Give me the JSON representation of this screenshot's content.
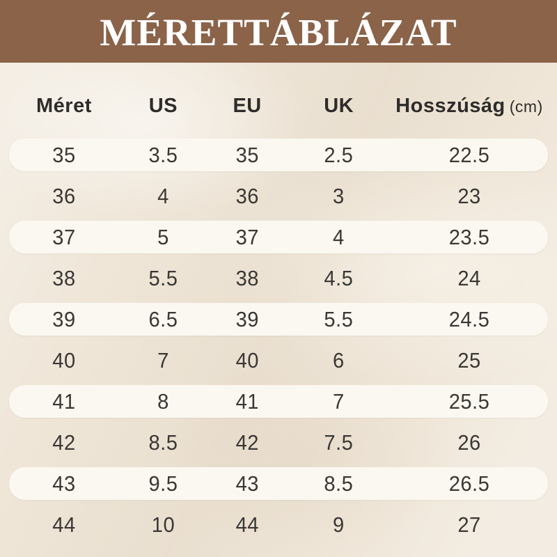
{
  "title": "MÉRETTÁBLÁZAT",
  "colors": {
    "banner_bg": "#8a6349",
    "banner_text": "#ffffff",
    "page_bg": "#efe6d8",
    "stripe_bg": "#fbf8f1",
    "text": "#3a3835"
  },
  "table": {
    "headers": {
      "size": "Méret",
      "us": "US",
      "eu": "EU",
      "uk": "UK",
      "length": "Hosszúság",
      "length_unit": "(cm)"
    },
    "rows": [
      [
        "35",
        "3.5",
        "35",
        "2.5",
        "22.5"
      ],
      [
        "36",
        "4",
        "36",
        "3",
        "23"
      ],
      [
        "37",
        "5",
        "37",
        "4",
        "23.5"
      ],
      [
        "38",
        "5.5",
        "38",
        "4.5",
        "24"
      ],
      [
        "39",
        "6.5",
        "39",
        "5.5",
        "24.5"
      ],
      [
        "40",
        "7",
        "40",
        "6",
        "25"
      ],
      [
        "41",
        "8",
        "41",
        "7",
        "25.5"
      ],
      [
        "42",
        "8.5",
        "42",
        "7.5",
        "26"
      ],
      [
        "43",
        "9.5",
        "43",
        "8.5",
        "26.5"
      ],
      [
        "44",
        "10",
        "44",
        "9",
        "27"
      ]
    ]
  }
}
